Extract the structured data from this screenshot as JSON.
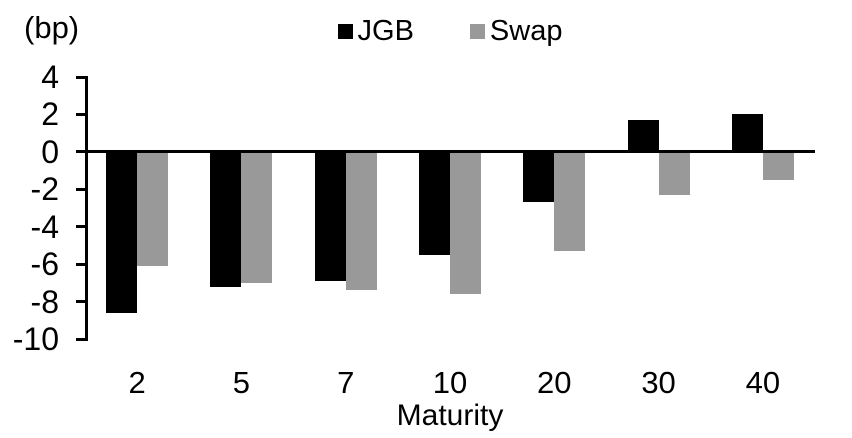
{
  "chart_data": {
    "type": "bar",
    "title": "",
    "unit_label": "(bp)",
    "xlabel": "Maturity",
    "ylabel": "(bp)",
    "categories": [
      "2",
      "5",
      "7",
      "10",
      "20",
      "30",
      "40"
    ],
    "series": [
      {
        "name": "JGB",
        "color": "#000000",
        "values": [
          -8.6,
          -7.2,
          -6.9,
          -5.5,
          -2.7,
          1.7,
          2.0
        ]
      },
      {
        "name": "Swap",
        "color": "#999999",
        "values": [
          -6.1,
          -7.0,
          -7.4,
          -7.6,
          -5.3,
          -2.3,
          -1.5
        ]
      }
    ],
    "ylim": [
      -10,
      4
    ],
    "yticks": [
      4,
      2,
      0,
      -2,
      -4,
      -6,
      -8,
      -10
    ],
    "legend_position": "top-center",
    "grid": false
  }
}
